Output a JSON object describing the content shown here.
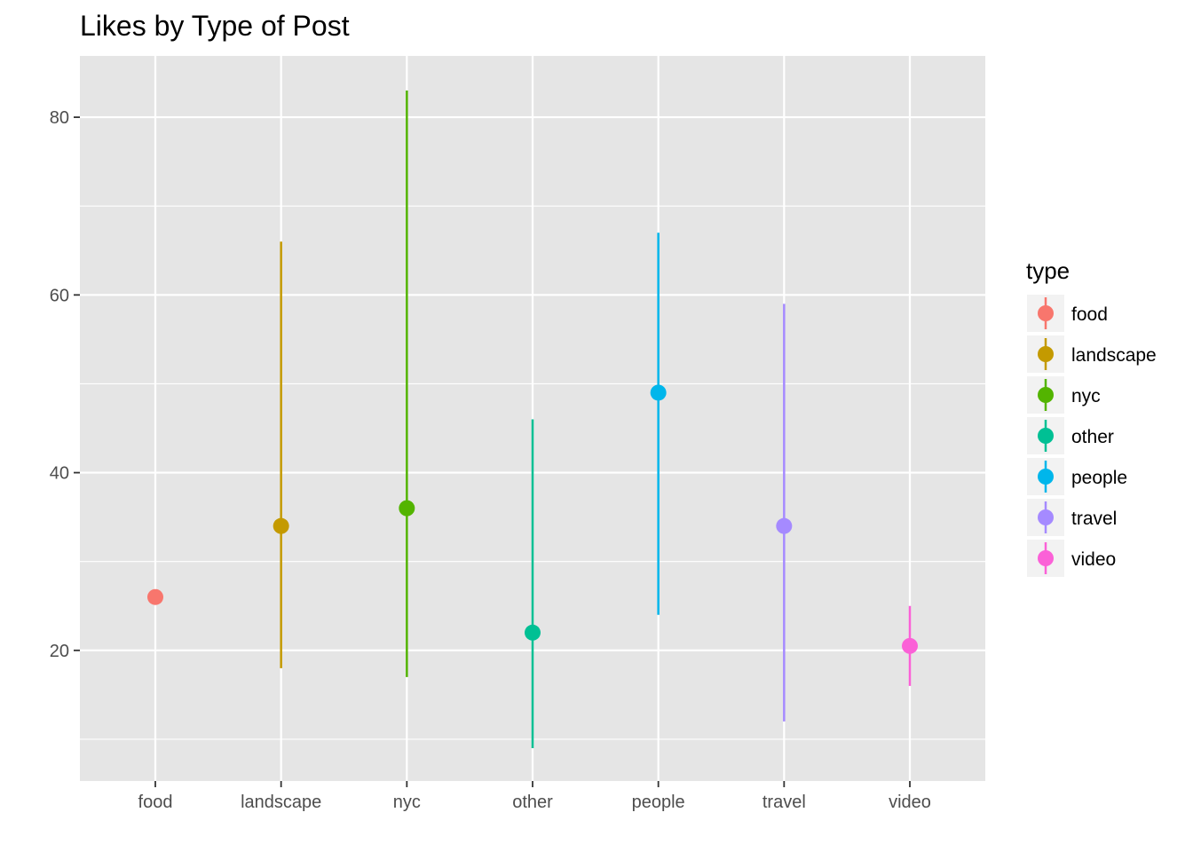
{
  "chart_data": {
    "type": "scatter",
    "subtype": "pointrange",
    "title": "Likes by Type of Post",
    "xlabel": "",
    "ylabel": "",
    "categories": [
      "food",
      "landscape",
      "nyc",
      "other",
      "people",
      "travel",
      "video"
    ],
    "y_ticks": [
      20,
      40,
      60,
      80
    ],
    "ylim": [
      5.3,
      86.9
    ],
    "grid": true,
    "legend": {
      "title": "type",
      "position": "right"
    },
    "series": [
      {
        "name": "food",
        "color": "#F8766D",
        "y": 26,
        "ymin": 26,
        "ymax": 26
      },
      {
        "name": "landscape",
        "color": "#C49A00",
        "y": 34,
        "ymin": 18,
        "ymax": 66
      },
      {
        "name": "nyc",
        "color": "#53B400",
        "y": 36,
        "ymin": 17,
        "ymax": 83
      },
      {
        "name": "other",
        "color": "#00C094",
        "y": 22,
        "ymin": 9,
        "ymax": 46
      },
      {
        "name": "people",
        "color": "#00B6EB",
        "y": 49,
        "ymin": 24,
        "ymax": 67
      },
      {
        "name": "travel",
        "color": "#A58AFF",
        "y": 34,
        "ymin": 12,
        "ymax": 59
      },
      {
        "name": "video",
        "color": "#FB61D7",
        "y": 20.5,
        "ymin": 16,
        "ymax": 25
      }
    ]
  }
}
